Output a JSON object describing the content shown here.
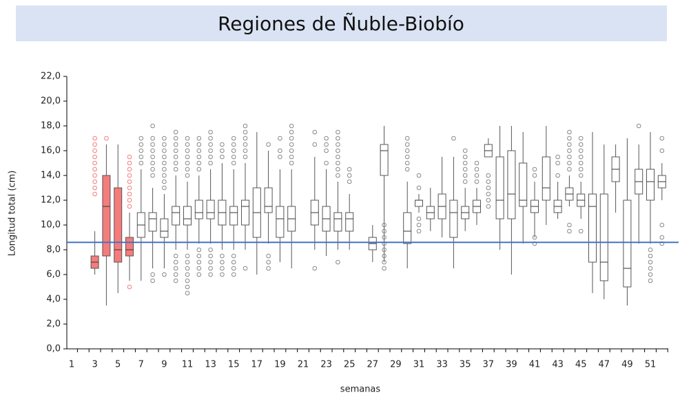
{
  "chart_data": {
    "type": "box",
    "title": "Regiones de Ñuble-Biobío",
    "x_label": "semanas",
    "y_label": "Longitud total (cm)",
    "categories": [
      1,
      null,
      3,
      null,
      5,
      null,
      7,
      null,
      9,
      null,
      11,
      null,
      13,
      null,
      15,
      null,
      17,
      null,
      19,
      null,
      21,
      null,
      23,
      null,
      25,
      null,
      27,
      null,
      29,
      null,
      31,
      null,
      33,
      null,
      35,
      null,
      37,
      null,
      39,
      null,
      41,
      null,
      43,
      null,
      45,
      null,
      47,
      null,
      49,
      null,
      51,
      null
    ],
    "min": [
      null,
      null,
      6,
      3.5,
      4.5,
      5.5,
      5.5,
      6.5,
      6.5,
      8,
      8,
      8.5,
      8.5,
      8,
      8,
      8,
      6,
      8.5,
      7,
      6.5,
      null,
      8,
      7.5,
      8,
      8,
      null,
      7,
      7,
      null,
      6.5,
      11,
      9.5,
      9,
      6.5,
      9.5,
      10,
      15.5,
      8,
      6,
      8.5,
      9,
      10,
      10.5,
      11.5,
      10.5,
      4.5,
      4,
      11,
      3.5,
      8.5,
      8.5,
      12
    ],
    "q1": [
      null,
      null,
      6.5,
      7.5,
      7,
      7.5,
      9,
      9.5,
      9,
      10,
      10,
      10.5,
      10.5,
      10,
      10,
      10,
      9,
      11,
      9,
      9.5,
      null,
      10,
      9.5,
      9.5,
      9.5,
      null,
      8,
      14,
      null,
      8.5,
      11.5,
      10.5,
      10.5,
      9,
      10.5,
      11,
      15.5,
      10.5,
      10.5,
      11.5,
      11,
      12,
      11,
      12,
      11.5,
      7,
      5.5,
      13.5,
      5,
      12.5,
      12,
      13
    ],
    "median": [
      null,
      null,
      7,
      11.5,
      8,
      8,
      10,
      10.5,
      9.5,
      11,
      10.5,
      11,
      11,
      11,
      11,
      11.5,
      11,
      11.5,
      10.5,
      10.5,
      null,
      11,
      10.5,
      10.5,
      10.5,
      null,
      8.5,
      16,
      null,
      9.5,
      12,
      11,
      11.5,
      11,
      11,
      11.5,
      16,
      12,
      12.5,
      12,
      11.5,
      13,
      11.5,
      12.5,
      12,
      11.5,
      7,
      14.5,
      6.5,
      13.5,
      13.5,
      13.5
    ],
    "q3": [
      null,
      null,
      7.5,
      14,
      13,
      9,
      11,
      11,
      10.5,
      11.5,
      11.5,
      12,
      12,
      12,
      11.5,
      12,
      13,
      13,
      11.5,
      11.5,
      null,
      12,
      11.5,
      11,
      11,
      null,
      9,
      16.5,
      null,
      11,
      12,
      11.5,
      12.5,
      12,
      11.5,
      12,
      16.5,
      15.5,
      16,
      15,
      12,
      15.5,
      12,
      13,
      12.5,
      12.5,
      12.5,
      15.5,
      12,
      14.5,
      14.5,
      14
    ],
    "max": [
      null,
      null,
      9.5,
      16.5,
      16.5,
      11,
      14.5,
      13,
      12.5,
      14,
      13.5,
      14,
      14.5,
      15,
      14.5,
      15,
      17.5,
      16,
      14.5,
      14.5,
      null,
      15.5,
      14.5,
      13.5,
      12.5,
      null,
      10,
      18,
      null,
      13.5,
      12.5,
      13,
      15.5,
      15.5,
      13,
      13,
      17,
      18,
      18,
      17.5,
      13.5,
      18,
      13.5,
      14,
      13.5,
      17.5,
      16.5,
      16.5,
      17,
      16.5,
      17.5,
      15
    ],
    "outliers": [
      [],
      [],
      [
        12.5,
        13,
        13.5,
        14,
        14.5,
        15,
        15.5,
        16,
        16.5,
        17
      ],
      [
        17
      ],
      [],
      [
        5,
        11.5,
        12,
        12.5,
        13,
        13.5,
        14,
        14.5,
        15,
        15.5
      ],
      [
        15,
        15.5,
        16,
        16.5,
        17
      ],
      [
        5.5,
        6,
        14,
        14.5,
        15,
        15.5,
        16,
        16.5,
        17,
        18
      ],
      [
        6,
        13,
        13.5,
        14,
        14.5,
        15,
        15.5,
        16,
        16.5,
        17
      ],
      [
        5.5,
        6,
        6.5,
        7,
        7.5,
        14.5,
        15,
        15.5,
        16,
        16.5,
        17,
        17.5
      ],
      [
        4.5,
        5,
        5.5,
        6,
        6.5,
        7,
        7.5,
        14,
        14.5,
        15,
        15.5,
        16,
        16.5,
        17
      ],
      [
        6,
        6.5,
        7,
        7.5,
        8,
        14.5,
        15,
        15.5,
        16,
        16.5,
        17
      ],
      [
        6,
        6.5,
        7,
        7.5,
        8,
        15,
        15.5,
        16,
        16.5,
        17,
        17.5
      ],
      [
        6,
        6.5,
        7,
        7.5,
        15.5,
        16,
        16.5
      ],
      [
        6,
        6.5,
        7,
        7.5,
        15,
        15.5,
        16,
        16.5,
        17
      ],
      [
        6.5,
        15.5,
        16,
        16.5,
        17,
        17.5,
        18
      ],
      [],
      [
        6.5,
        7,
        7.5,
        16.5
      ],
      [
        15.5,
        16,
        17
      ],
      [
        15,
        15.5,
        16,
        16.5,
        17,
        17.5,
        18
      ],
      [],
      [
        6.5,
        16.5,
        17.5
      ],
      [
        15,
        16,
        16.5,
        17
      ],
      [
        7,
        14,
        14.5,
        15,
        15.5,
        16,
        16.5,
        17,
        17.5
      ],
      [
        13.5,
        14,
        14.5
      ],
      [],
      [],
      [
        6.5,
        7,
        7.5,
        8,
        8.5,
        9,
        9.5,
        10
      ],
      [],
      [
        14.5,
        15,
        15.5,
        16,
        16.5,
        17
      ],
      [
        9.5,
        10,
        10.5,
        13,
        14
      ],
      [],
      [],
      [
        17
      ],
      [
        13.5,
        14,
        14.5,
        15,
        15.5,
        16
      ],
      [
        13.5,
        14,
        14.5,
        15
      ],
      [
        11.5,
        12,
        12.5,
        13,
        13.5,
        14
      ],
      [],
      [],
      [],
      [
        8.5,
        9,
        14,
        14.5
      ],
      [],
      [
        14,
        15,
        15.5
      ],
      [
        9.5,
        10,
        14.5,
        15,
        15.5,
        16,
        16.5,
        17,
        17.5
      ],
      [
        9.5,
        14,
        14.5,
        15,
        15.5,
        16,
        16.5,
        17
      ],
      [],
      [],
      [],
      [],
      [
        18
      ],
      [
        5.5,
        6,
        6.5,
        7,
        7.5,
        8
      ],
      [
        8.5,
        9,
        10,
        16,
        17
      ]
    ],
    "box_colors": [
      "#ffffff",
      "#ffffff",
      "#f47c7c",
      "#f47c7c",
      "#f47c7c",
      "#f47c7c",
      "#ffffff",
      "#ffffff",
      "#ffffff",
      "#ffffff",
      "#ffffff",
      "#ffffff",
      "#ffffff",
      "#ffffff",
      "#ffffff",
      "#ffffff",
      "#ffffff",
      "#ffffff",
      "#ffffff",
      "#ffffff",
      "#ffffff",
      "#ffffff",
      "#ffffff",
      "#ffffff",
      "#ffffff",
      "#ffffff",
      "#ffffff",
      "#ffffff",
      "#ffffff",
      "#ffffff",
      "#ffffff",
      "#ffffff",
      "#ffffff",
      "#ffffff",
      "#ffffff",
      "#ffffff",
      "#ffffff",
      "#ffffff",
      "#ffffff",
      "#ffffff",
      "#ffffff",
      "#ffffff",
      "#ffffff",
      "#ffffff",
      "#ffffff",
      "#ffffff",
      "#ffffff",
      "#ffffff",
      "#ffffff",
      "#ffffff",
      "#ffffff",
      "#ffffff"
    ],
    "reference_line": {
      "value": 8.6,
      "color": "#4472c4"
    },
    "ylim": [
      0,
      22
    ],
    "yticks": [
      {
        "value": 0,
        "label": "0,0"
      },
      {
        "value": 2,
        "label": "2,0"
      },
      {
        "value": 4,
        "label": "4,0"
      },
      {
        "value": 6,
        "label": "6,0"
      },
      {
        "value": 8,
        "label": "8,0"
      },
      {
        "value": 10,
        "label": "10,0"
      },
      {
        "value": 12,
        "label": "12,0"
      },
      {
        "value": 14,
        "label": "14,0"
      },
      {
        "value": 16,
        "label": "16,0"
      },
      {
        "value": 18,
        "label": "18,0"
      },
      {
        "value": 20,
        "label": "20,0"
      },
      {
        "value": 22,
        "label": "22,0"
      }
    ]
  }
}
